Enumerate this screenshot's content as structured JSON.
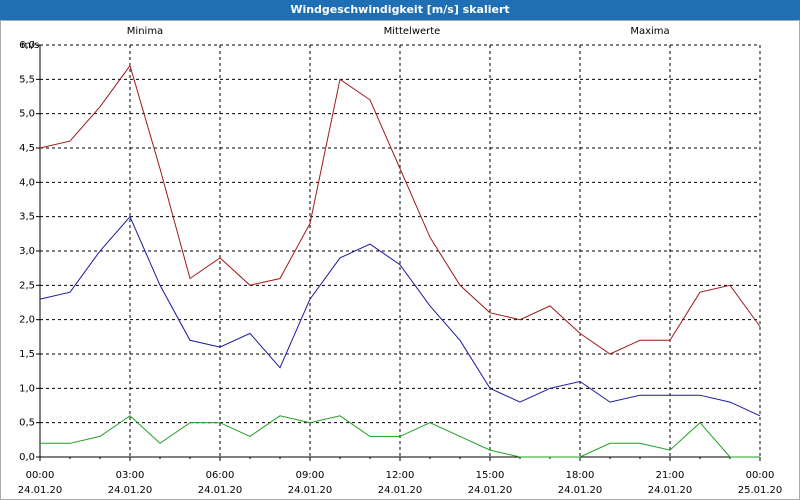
{
  "window": {
    "title": "Windgeschwindigkeit [m/s] skaliert"
  },
  "colors": {
    "titlebar": "#1f6fb4",
    "minima": "#1fa01f",
    "mittelwerte": "#1a1aa0",
    "maxima": "#a01818",
    "grid": "#000000"
  },
  "chart_data": {
    "type": "line",
    "title": "Windgeschwindigkeit [m/s] skaliert",
    "ylabel": "m/s",
    "xlabel": "",
    "ylim": [
      0.0,
      6.0
    ],
    "yticks": [
      "0,0",
      "0,5",
      "1,0",
      "1,5",
      "2,0",
      "2,5",
      "3,0",
      "3,5",
      "4,0",
      "4,5",
      "5,0",
      "5,5",
      "6,0"
    ],
    "x_ticks": [
      {
        "time": "00:00",
        "date": "24.01.20"
      },
      {
        "time": "03:00",
        "date": "24.01.20"
      },
      {
        "time": "06:00",
        "date": "24.01.20"
      },
      {
        "time": "09:00",
        "date": "24.01.20"
      },
      {
        "time": "12:00",
        "date": "24.01.20"
      },
      {
        "time": "15:00",
        "date": "24.01.20"
      },
      {
        "time": "18:00",
        "date": "24.01.20"
      },
      {
        "time": "21:00",
        "date": "24.01.20"
      },
      {
        "time": "00:00",
        "date": "25.01.20"
      }
    ],
    "x_hours": [
      0,
      1,
      2,
      3,
      4,
      5,
      6,
      7,
      8,
      9,
      10,
      11,
      12,
      13,
      14,
      15,
      16,
      17,
      18,
      19,
      20,
      21,
      22,
      23,
      24
    ],
    "grid": true,
    "legend_position": "top",
    "series": [
      {
        "name": "Minima",
        "color_key": "minima",
        "values": [
          0.2,
          0.2,
          0.3,
          0.6,
          0.2,
          0.5,
          0.5,
          0.3,
          0.6,
          0.5,
          0.6,
          0.3,
          0.3,
          0.5,
          0.3,
          0.1,
          0.0,
          0.0,
          0.0,
          0.2,
          0.2,
          0.1,
          0.5,
          0.0,
          0.0
        ]
      },
      {
        "name": "Mittelwerte",
        "color_key": "mittelwerte",
        "values": [
          2.3,
          2.4,
          3.0,
          3.5,
          2.5,
          1.7,
          1.6,
          1.8,
          1.3,
          2.3,
          2.9,
          3.1,
          2.8,
          2.2,
          1.7,
          1.0,
          0.8,
          1.0,
          1.1,
          0.8,
          0.9,
          0.9,
          0.9,
          0.8,
          0.6
        ]
      },
      {
        "name": "Maxima",
        "color_key": "maxima",
        "values": [
          4.5,
          4.6,
          5.1,
          5.7,
          4.2,
          2.6,
          2.9,
          2.5,
          2.6,
          3.4,
          5.5,
          5.2,
          4.2,
          3.2,
          2.5,
          2.1,
          2.0,
          2.2,
          1.8,
          1.5,
          1.7,
          1.7,
          2.4,
          2.5,
          1.9
        ]
      }
    ]
  }
}
